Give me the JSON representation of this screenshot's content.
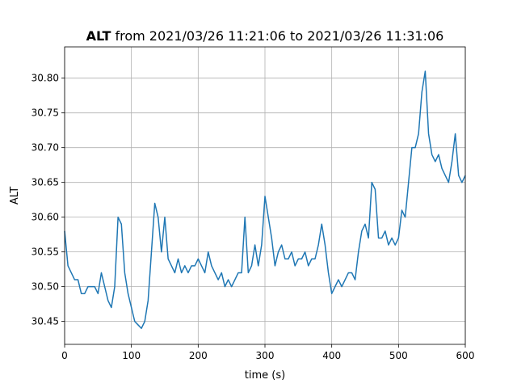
{
  "chart_data": {
    "type": "line",
    "title": [
      "ALT",
      "from 2021/03/26 11:21:06 to 2021/03/26 11:31:06"
    ],
    "xlabel": "time (s)",
    "ylabel": "ALT",
    "x": [
      0,
      5,
      10,
      15,
      20,
      25,
      30,
      35,
      40,
      45,
      50,
      55,
      60,
      65,
      70,
      75,
      80,
      85,
      90,
      95,
      100,
      105,
      110,
      115,
      120,
      125,
      130,
      135,
      140,
      145,
      150,
      155,
      160,
      165,
      170,
      175,
      180,
      185,
      190,
      195,
      200,
      205,
      210,
      215,
      220,
      225,
      230,
      235,
      240,
      245,
      250,
      255,
      260,
      265,
      270,
      275,
      280,
      285,
      290,
      295,
      300,
      305,
      310,
      315,
      320,
      325,
      330,
      335,
      340,
      345,
      350,
      355,
      360,
      365,
      370,
      375,
      380,
      385,
      390,
      395,
      400,
      405,
      410,
      415,
      420,
      425,
      430,
      435,
      440,
      445,
      450,
      455,
      460,
      465,
      470,
      475,
      480,
      485,
      490,
      495,
      500,
      505,
      510,
      515,
      520,
      525,
      530,
      535,
      540,
      545,
      550,
      555,
      560,
      565,
      570,
      575,
      580,
      585,
      590,
      595,
      600
    ],
    "series": [
      {
        "name": "ALT",
        "color": "#1f77b4",
        "values": [
          30.58,
          30.53,
          30.52,
          30.51,
          30.51,
          30.49,
          30.49,
          30.5,
          30.5,
          30.5,
          30.49,
          30.52,
          30.5,
          30.48,
          30.47,
          30.5,
          30.6,
          30.59,
          30.52,
          30.49,
          30.47,
          30.45,
          30.445,
          30.44,
          30.45,
          30.48,
          30.55,
          30.62,
          30.6,
          30.55,
          30.6,
          30.54,
          30.53,
          30.52,
          30.54,
          30.52,
          30.53,
          30.52,
          30.53,
          30.53,
          30.54,
          30.53,
          30.52,
          30.55,
          30.53,
          30.52,
          30.51,
          30.52,
          30.5,
          30.51,
          30.5,
          30.51,
          30.52,
          30.52,
          30.6,
          30.52,
          30.53,
          30.56,
          30.53,
          30.56,
          30.63,
          30.6,
          30.57,
          30.53,
          30.55,
          30.56,
          30.54,
          30.54,
          30.55,
          30.53,
          30.54,
          30.54,
          30.55,
          30.53,
          30.54,
          30.54,
          30.56,
          30.59,
          30.56,
          30.52,
          30.49,
          30.5,
          30.51,
          30.5,
          30.51,
          30.52,
          30.52,
          30.51,
          30.55,
          30.58,
          30.59,
          30.57,
          30.65,
          30.64,
          30.57,
          30.57,
          30.58,
          30.56,
          30.57,
          30.56,
          30.57,
          30.61,
          30.6,
          30.65,
          30.7,
          30.7,
          30.72,
          30.78,
          30.81,
          30.72,
          30.69,
          30.68,
          30.69,
          30.67,
          30.66,
          30.65,
          30.68,
          30.72,
          30.66,
          30.65,
          30.66
        ]
      }
    ],
    "xlim": [
      0,
      600
    ],
    "ylim": [
      30.417,
      30.845
    ],
    "xticks": [
      0,
      100,
      200,
      300,
      400,
      500,
      600
    ],
    "yticks": [
      30.45,
      {
        "value": 30.5,
        "label": "30.50"
      },
      30.55,
      {
        "value": 30.6,
        "label": "30.60"
      },
      30.65,
      {
        "value": 30.7,
        "label": "30.70"
      },
      30.75,
      {
        "value": 30.8,
        "label": "30.80"
      }
    ],
    "grid": true
  }
}
